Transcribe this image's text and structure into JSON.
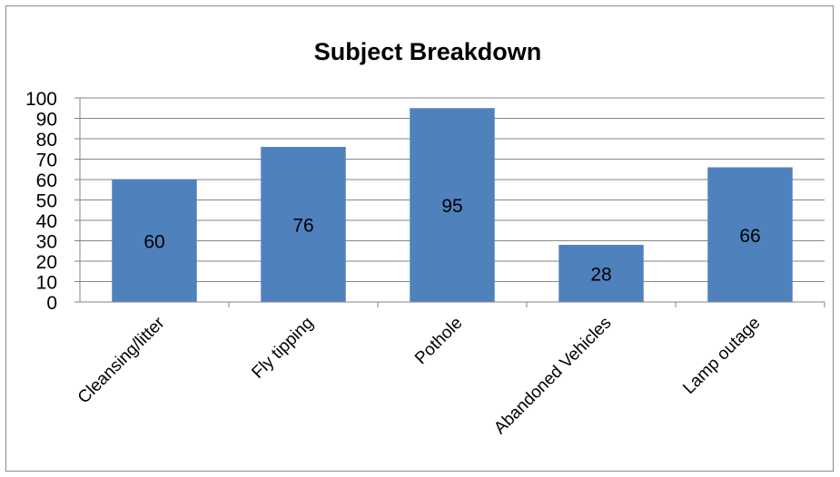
{
  "chart_data": {
    "type": "bar",
    "title": "Subject Breakdown",
    "categories": [
      "Cleansing/litter",
      "Fly tipping",
      "Pothole",
      "Abandoned Vehicles",
      "Lamp outage"
    ],
    "values": [
      60,
      76,
      95,
      28,
      66
    ],
    "data_labels": [
      "60",
      "76",
      "95",
      "28",
      "66"
    ],
    "ylim": [
      0,
      100
    ],
    "yticks": [
      0,
      10,
      20,
      30,
      40,
      50,
      60,
      70,
      80,
      90,
      100
    ],
    "bar_color": "#4f81bd",
    "grid": true,
    "legend": "none",
    "xlabel": "",
    "ylabel": ""
  }
}
